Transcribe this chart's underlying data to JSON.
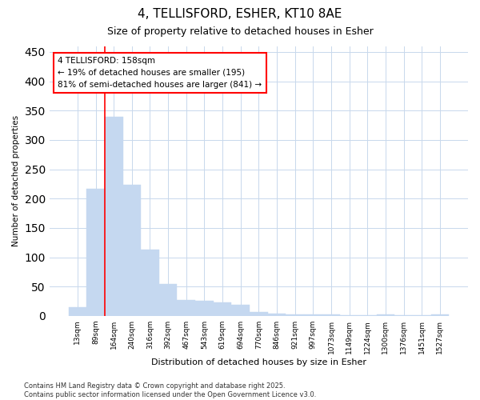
{
  "title1": "4, TELLISFORD, ESHER, KT10 8AE",
  "title2": "Size of property relative to detached houses in Esher",
  "xlabel": "Distribution of detached houses by size in Esher",
  "ylabel": "Number of detached properties",
  "categories": [
    "13sqm",
    "89sqm",
    "164sqm",
    "240sqm",
    "316sqm",
    "392sqm",
    "467sqm",
    "543sqm",
    "619sqm",
    "694sqm",
    "770sqm",
    "846sqm",
    "921sqm",
    "997sqm",
    "1073sqm",
    "1149sqm",
    "1224sqm",
    "1300sqm",
    "1376sqm",
    "1451sqm",
    "1527sqm"
  ],
  "values": [
    15,
    217,
    340,
    223,
    113,
    55,
    27,
    26,
    23,
    19,
    7,
    4,
    2,
    2,
    2,
    1,
    1,
    2,
    1,
    1,
    2
  ],
  "bar_color": "#c5d8f0",
  "bar_edgecolor": "#c5d8f0",
  "highlight_index": 2,
  "annotation_title": "4 TELLISFORD: 158sqm",
  "annotation_line1": "← 19% of detached houses are smaller (195)",
  "annotation_line2": "81% of semi-detached houses are larger (841) →",
  "annotation_box_facecolor": "white",
  "annotation_box_edgecolor": "red",
  "redline_color": "red",
  "yticks": [
    0,
    50,
    100,
    150,
    200,
    250,
    300,
    350,
    400,
    450
  ],
  "ylim": [
    0,
    460
  ],
  "footer1": "Contains HM Land Registry data © Crown copyright and database right 2025.",
  "footer2": "Contains public sector information licensed under the Open Government Licence v3.0.",
  "bg_color": "#ffffff",
  "grid_color": "#c8d8ec",
  "title_fontsize": 11,
  "subtitle_fontsize": 9
}
